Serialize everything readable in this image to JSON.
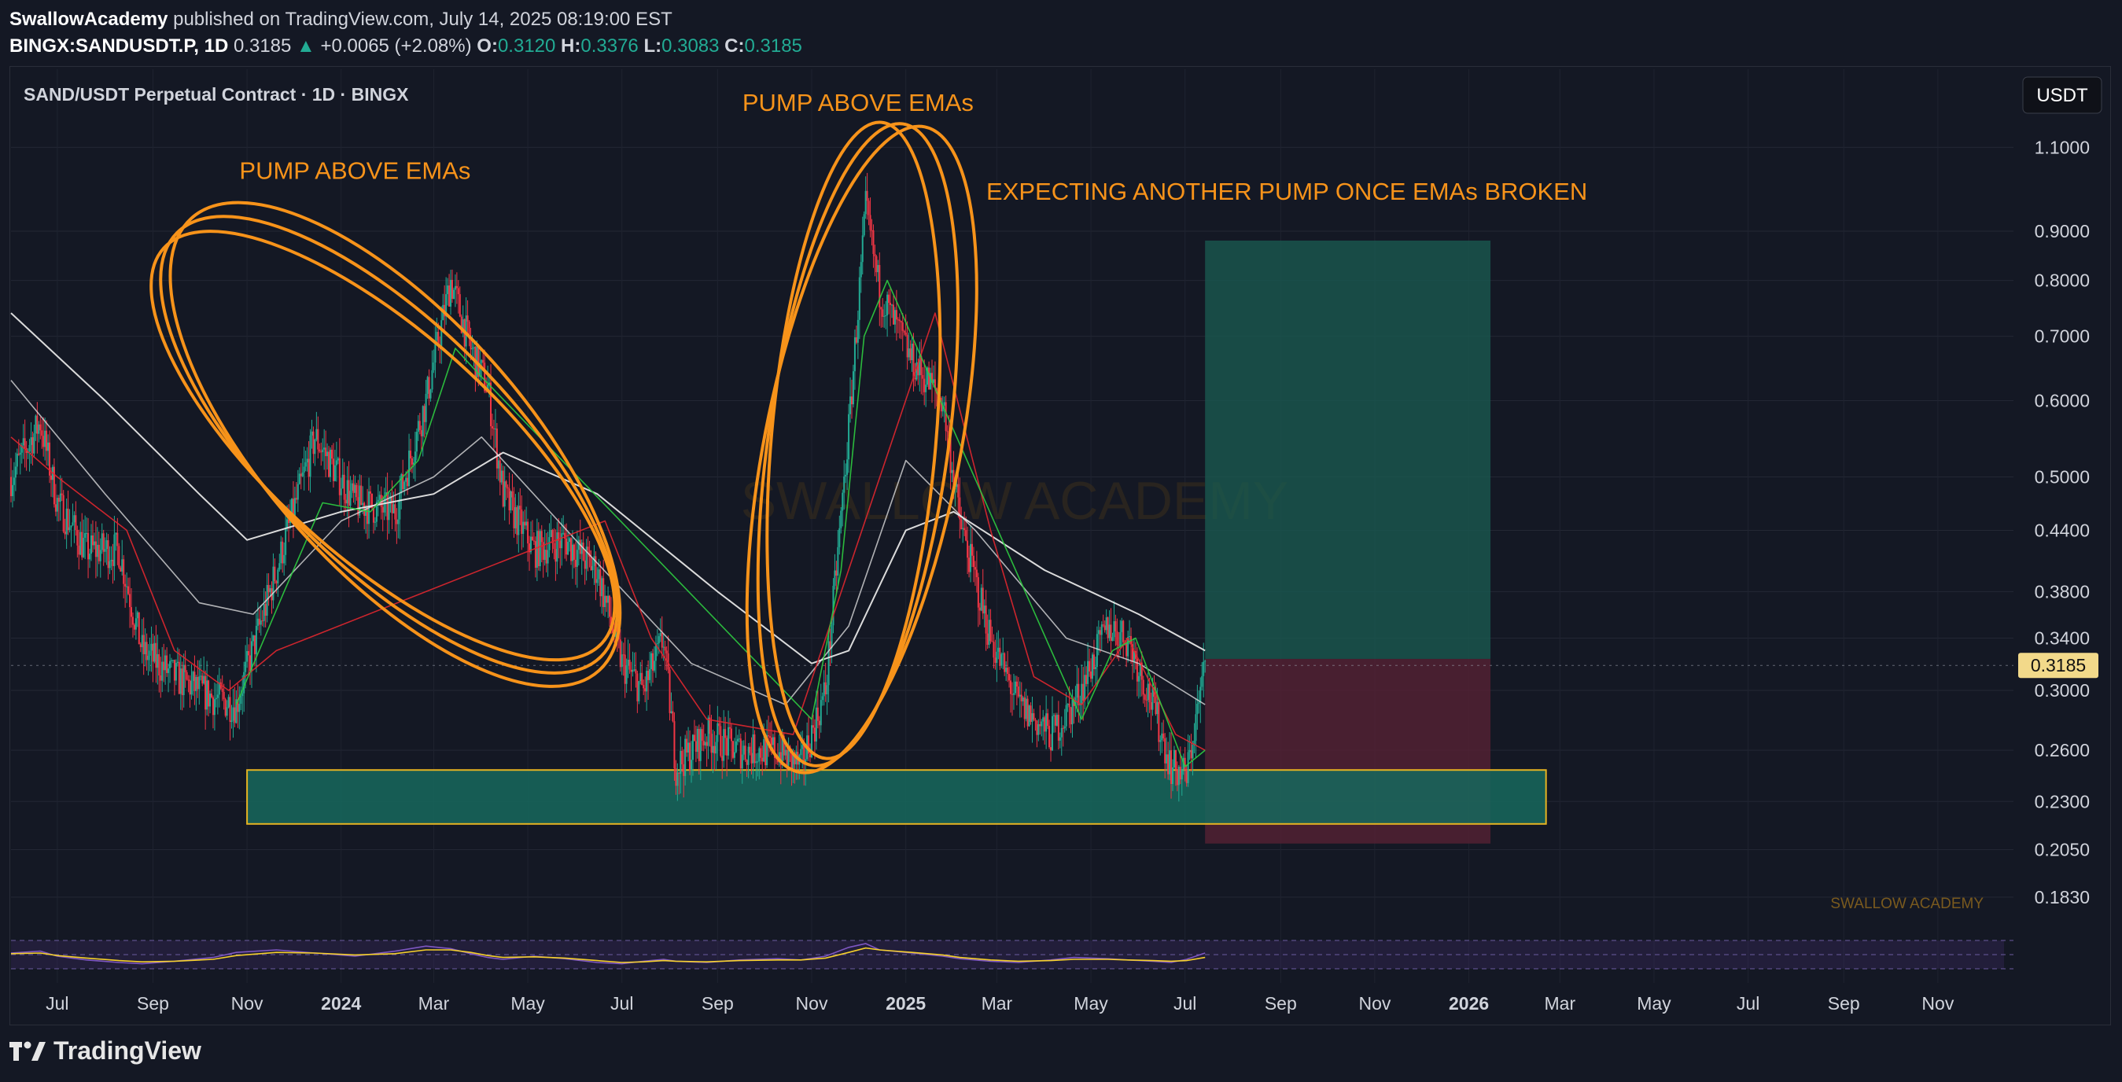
{
  "header": {
    "author": "SwallowAcademy",
    "published": "published on TradingView.com, July 14, 2025 08:19:00 EST",
    "symbol": "BINGX:SANDUSDT.P, 1D",
    "last": "0.3185",
    "change_arrow": "▲",
    "change": "+0.0065 (+2.08%)",
    "o_label": "O:",
    "o": "0.3120",
    "h_label": "H:",
    "h": "0.3376",
    "l_label": "L:",
    "l": "0.3083",
    "c_label": "C:",
    "c": "0.3185"
  },
  "colors": {
    "bg": "#141824",
    "up": "#22ab94",
    "down": "#f23645",
    "annotation": "#f7931a",
    "ema_red": "#e0272f",
    "ema_green": "#2ecc40",
    "ema_white": "#e6e6e6",
    "long_zone": "#1a5c52",
    "stop_zone": "#5a2234",
    "support_zone": "#16695d"
  },
  "chart_data": {
    "type": "candlestick",
    "title": "SAND/USDT Perpetual Contract · 1D · BINGX",
    "currency": "USDT",
    "yscale": "log",
    "ylim": [
      0.17,
      1.18
    ],
    "price_ticks": [
      "1.1000",
      "0.9000",
      "0.8000",
      "0.7000",
      "0.6000",
      "0.5000",
      "0.4400",
      "0.3800",
      "0.3400",
      "0.3000",
      "0.2600",
      "0.2300",
      "0.2050",
      "0.1830"
    ],
    "current_price": "0.3185",
    "x_labels": [
      "Jul",
      "Sep",
      "Nov",
      "2024",
      "Mar",
      "May",
      "Jul",
      "Sep",
      "Nov",
      "2025",
      "Mar",
      "May",
      "Jul",
      "Sep",
      "Nov",
      "2026",
      "Mar",
      "May",
      "Jul",
      "Sep",
      "Nov"
    ],
    "x_label_bold": [
      "2024",
      "2025",
      "2026"
    ],
    "x_range": [
      "2023-06-01",
      "2026-12-20"
    ],
    "x_dates": [
      "2023-07-01",
      "2023-09-01",
      "2023-11-01",
      "2024-01-01",
      "2024-03-01",
      "2024-05-01",
      "2024-07-01",
      "2024-09-01",
      "2024-11-01",
      "2025-01-01",
      "2025-03-01",
      "2025-05-01",
      "2025-07-01",
      "2025-09-01",
      "2025-11-01",
      "2026-01-01",
      "2026-03-01",
      "2026-05-01",
      "2026-07-01",
      "2026-09-01",
      "2026-11-01"
    ],
    "price_path": [
      [
        "2023-06-01",
        0.5
      ],
      [
        "2023-06-20",
        0.57
      ],
      [
        "2023-07-01",
        0.47
      ],
      [
        "2023-07-20",
        0.42
      ],
      [
        "2023-08-10",
        0.42
      ],
      [
        "2023-08-25",
        0.33
      ],
      [
        "2023-09-15",
        0.31
      ],
      [
        "2023-10-10",
        0.295
      ],
      [
        "2023-10-25",
        0.29
      ],
      [
        "2023-11-20",
        0.4
      ],
      [
        "2023-12-15",
        0.55
      ],
      [
        "2024-01-10",
        0.47
      ],
      [
        "2024-02-05",
        0.46
      ],
      [
        "2024-02-25",
        0.6
      ],
      [
        "2024-03-12",
        0.8
      ],
      [
        "2024-03-25",
        0.68
      ],
      [
        "2024-04-05",
        0.62
      ],
      [
        "2024-04-15",
        0.48
      ],
      [
        "2024-05-05",
        0.42
      ],
      [
        "2024-05-25",
        0.43
      ],
      [
        "2024-06-15",
        0.4
      ],
      [
        "2024-07-01",
        0.32
      ],
      [
        "2024-07-15",
        0.3
      ],
      [
        "2024-07-28",
        0.34
      ],
      [
        "2024-08-05",
        0.25
      ],
      [
        "2024-08-25",
        0.27
      ],
      [
        "2024-09-15",
        0.26
      ],
      [
        "2024-10-10",
        0.26
      ],
      [
        "2024-10-25",
        0.25
      ],
      [
        "2024-11-10",
        0.3
      ],
      [
        "2024-11-25",
        0.56
      ],
      [
        "2024-12-06",
        0.95
      ],
      [
        "2024-12-15",
        0.78
      ],
      [
        "2025-01-05",
        0.66
      ],
      [
        "2025-01-25",
        0.6
      ],
      [
        "2025-02-05",
        0.45
      ],
      [
        "2025-02-25",
        0.34
      ],
      [
        "2025-03-15",
        0.29
      ],
      [
        "2025-04-05",
        0.27
      ],
      [
        "2025-04-20",
        0.29
      ],
      [
        "2025-05-12",
        0.35
      ],
      [
        "2025-05-25",
        0.34
      ],
      [
        "2025-06-10",
        0.29
      ],
      [
        "2025-06-22",
        0.25
      ],
      [
        "2025-07-02",
        0.245
      ],
      [
        "2025-07-14",
        0.3185
      ]
    ],
    "moving_averages": [
      {
        "color": "#e6e6e6",
        "width": 2,
        "opacity": 0.95,
        "points": [
          [
            "2023-06-01",
            0.74
          ],
          [
            "2023-08-01",
            0.6
          ],
          [
            "2023-10-01",
            0.48
          ],
          [
            "2023-11-01",
            0.43
          ],
          [
            "2024-01-01",
            0.46
          ],
          [
            "2024-03-01",
            0.48
          ],
          [
            "2024-04-15",
            0.53
          ],
          [
            "2024-06-15",
            0.48
          ],
          [
            "2024-09-01",
            0.38
          ],
          [
            "2024-11-01",
            0.32
          ],
          [
            "2024-11-25",
            0.33
          ],
          [
            "2025-01-01",
            0.44
          ],
          [
            "2025-02-01",
            0.46
          ],
          [
            "2025-04-01",
            0.4
          ],
          [
            "2025-06-01",
            0.36
          ],
          [
            "2025-07-14",
            0.33
          ]
        ]
      },
      {
        "color": "#e6e6e6",
        "width": 1.6,
        "opacity": 0.75,
        "points": [
          [
            "2023-06-01",
            0.63
          ],
          [
            "2023-08-01",
            0.48
          ],
          [
            "2023-10-01",
            0.37
          ],
          [
            "2023-11-05",
            0.36
          ],
          [
            "2024-01-01",
            0.45
          ],
          [
            "2024-03-01",
            0.5
          ],
          [
            "2024-04-01",
            0.55
          ],
          [
            "2024-06-01",
            0.43
          ],
          [
            "2024-08-15",
            0.32
          ],
          [
            "2024-10-15",
            0.29
          ],
          [
            "2024-11-25",
            0.35
          ],
          [
            "2025-01-01",
            0.52
          ],
          [
            "2025-02-15",
            0.44
          ],
          [
            "2025-04-15",
            0.34
          ],
          [
            "2025-06-01",
            0.32
          ],
          [
            "2025-07-14",
            0.29
          ]
        ]
      },
      {
        "color": "#e0272f",
        "width": 1.6,
        "opacity": 0.9,
        "points": [
          [
            "2023-06-01",
            0.55
          ],
          [
            "2023-07-01",
            0.5
          ],
          [
            "2023-08-15",
            0.44
          ],
          [
            "2023-09-15",
            0.33
          ],
          [
            "2023-10-20",
            0.3
          ],
          [
            "2023-11-20",
            0.33
          ],
          [
            "2024-06-20",
            0.45
          ],
          [
            "2024-07-20",
            0.34
          ],
          [
            "2024-08-25",
            0.28
          ],
          [
            "2024-10-20",
            0.27
          ],
          [
            "2025-01-20",
            0.74
          ],
          [
            "2025-02-25",
            0.44
          ],
          [
            "2025-03-25",
            0.31
          ],
          [
            "2025-04-25",
            0.29
          ],
          [
            "2025-05-25",
            0.34
          ],
          [
            "2025-06-25",
            0.27
          ],
          [
            "2025-07-14",
            0.26
          ]
        ]
      },
      {
        "color": "#2ecc40",
        "width": 1.6,
        "opacity": 0.9,
        "points": [
          [
            "2023-10-25",
            0.29
          ],
          [
            "2023-11-25",
            0.38
          ],
          [
            "2023-12-20",
            0.47
          ],
          [
            "2024-01-20",
            0.46
          ],
          [
            "2024-02-20",
            0.52
          ],
          [
            "2024-03-15",
            0.68
          ],
          [
            "2024-03-30",
            0.64
          ],
          [
            "2024-11-01",
            0.28
          ],
          [
            "2024-11-20",
            0.4
          ],
          [
            "2024-12-05",
            0.7
          ],
          [
            "2024-12-20",
            0.8
          ],
          [
            "2025-04-25",
            0.28
          ],
          [
            "2025-05-15",
            0.33
          ],
          [
            "2025-05-30",
            0.34
          ],
          [
            "2025-07-01",
            0.25
          ],
          [
            "2025-07-14",
            0.26
          ]
        ]
      }
    ],
    "annotations": [
      {
        "text": "PUMP ABOVE EMAs",
        "date": "2024-01-10",
        "price": 1.02
      },
      {
        "text": "PUMP ABOVE EMAs",
        "date": "2024-12-01",
        "price": 1.2
      },
      {
        "text": "EXPECTING ANOTHER PUMP ONCE EMAs BROKEN",
        "date": "2025-09-05",
        "price": 0.97
      }
    ],
    "ellipses": [
      {
        "date": "2024-02-01",
        "price": 0.54,
        "rx": 0.06,
        "ry": 0.37,
        "rot": -45
      },
      {
        "date": "2024-12-01",
        "price": 0.54,
        "rx": 0.045,
        "ry": 0.4,
        "rot": 8
      }
    ],
    "position": {
      "start": "2025-07-14",
      "end": "2026-01-15",
      "entry": 0.3235,
      "target": 0.88,
      "stop": 0.208
    },
    "support_zone": {
      "start": "2023-11-01",
      "end": "2026-02-20",
      "top": 0.248,
      "bottom": 0.218
    },
    "indicator": {
      "name": "RSI",
      "rsi": [
        55,
        58,
        50,
        44,
        40,
        38,
        42,
        48,
        56,
        60,
        55,
        50,
        58,
        66,
        62,
        54,
        48,
        45,
        50,
        46,
        40,
        38,
        42,
        45,
        42,
        40,
        44,
        46,
        44,
        50,
        64,
        70,
        60,
        55,
        50,
        46,
        42,
        40,
        44,
        48,
        46,
        44,
        42,
        40,
        45,
        55
      ],
      "signal": [
        54,
        55,
        51,
        47,
        43,
        41,
        42,
        45,
        51,
        56,
        55,
        52,
        54,
        60,
        60,
        56,
        51,
        48,
        49,
        47,
        43,
        40,
        41,
        43,
        42,
        41,
        43,
        44,
        44,
        47,
        56,
        63,
        60,
        56,
        52,
        48,
        44,
        42,
        43,
        45,
        45,
        44,
        43,
        42,
        43,
        48
      ]
    },
    "watermark": "SWALLOW ACADEMY",
    "corner_watermark": "SWALLOW ACADEMY"
  },
  "footer": {
    "brand": "TradingView"
  }
}
